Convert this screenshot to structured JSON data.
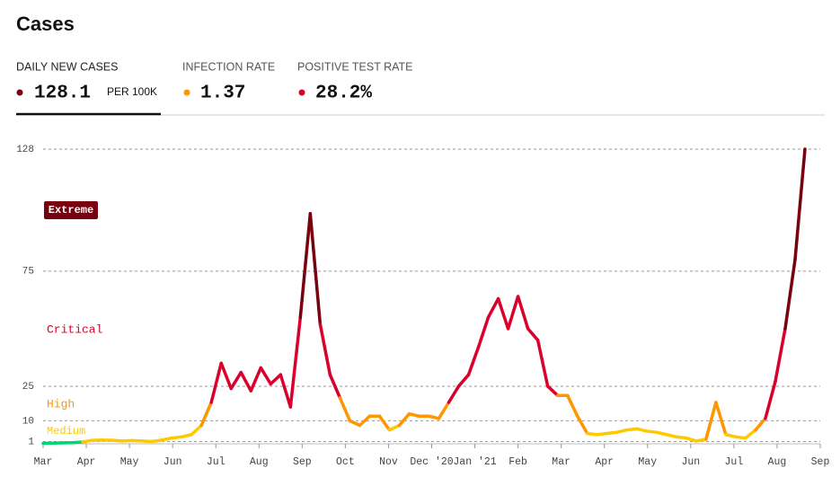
{
  "header": {
    "title": "Cases"
  },
  "tabs": [
    {
      "label": "DAILY NEW CASES",
      "value": "128.1",
      "unit": "PER 100K",
      "color": "#79000f"
    },
    {
      "label": "INFECTION RATE",
      "value": "1.37",
      "color": "#ff9600"
    },
    {
      "label": "POSITIVE TEST RATE",
      "value": "28.2%",
      "color": "#d9002c"
    }
  ],
  "chart_data": {
    "type": "line",
    "xticks": [
      "Mar",
      "Apr",
      "May",
      "Jun",
      "Jul",
      "Aug",
      "Sep",
      "Oct",
      "Nov",
      "Dec '20",
      "Jan '21",
      "Feb",
      "Mar",
      "Apr",
      "May",
      "Jun",
      "Jul",
      "Aug",
      "Sep"
    ],
    "ylim": [
      0,
      128
    ],
    "yticks": [
      1,
      10,
      25,
      75,
      128
    ],
    "grid": true,
    "zones": [
      {
        "name": "Medium",
        "color": "#ffc900"
      },
      {
        "name": "High",
        "color": "#ff9600"
      },
      {
        "name": "Critical",
        "color": "#d9002c"
      },
      {
        "name": "Extreme",
        "color": "#79000f"
      }
    ],
    "low_color": "#00d474",
    "series": [
      {
        "name": "Daily new cases per 100K",
        "values": [
          0.2,
          0.3,
          0.4,
          0.5,
          0.8,
          1.5,
          1.6,
          1.5,
          1.2,
          1.4,
          1.2,
          1.0,
          1.6,
          2.5,
          3,
          4,
          8,
          18,
          35,
          24,
          31,
          23,
          33,
          26,
          30,
          16,
          55,
          100,
          52,
          30,
          20,
          10,
          8,
          12,
          12,
          6,
          8,
          13,
          12,
          12,
          11,
          18,
          25,
          30,
          42,
          55,
          63,
          50,
          64,
          50,
          45,
          25,
          21,
          21,
          12,
          4.5,
          4,
          4.5,
          5,
          6,
          6.5,
          5.5,
          5,
          4,
          3,
          2.5,
          1.2,
          2,
          18,
          4,
          3,
          2.5,
          6,
          11,
          27,
          50,
          80,
          128
        ]
      }
    ]
  }
}
